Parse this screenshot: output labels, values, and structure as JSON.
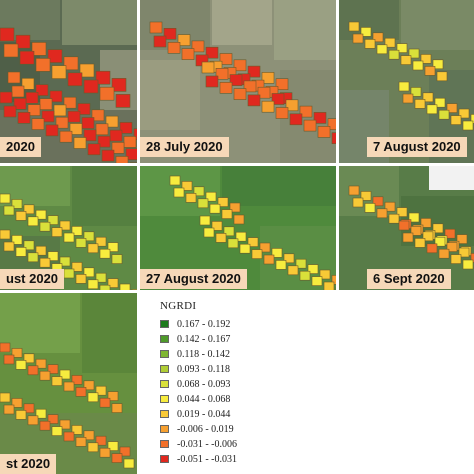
{
  "panels": [
    {
      "label": "2020"
    },
    {
      "label": "28 July 2020"
    },
    {
      "label": "7 August 2020"
    },
    {
      "label": "ust 2020"
    },
    {
      "label": "27 August 2020"
    },
    {
      "label": "6 Sept 2020"
    },
    {
      "label": "st 2020"
    }
  ],
  "legend": {
    "title": "NGRDI",
    "classes": [
      {
        "range": "0.167 - 0.192",
        "color": "#1e7b1e"
      },
      {
        "range": "0.142 - 0.167",
        "color": "#4f9a2a"
      },
      {
        "range": "0.118 - 0.142",
        "color": "#7fb632"
      },
      {
        "range": "0.093 - 0.118",
        "color": "#b0cd35"
      },
      {
        "range": "0.068 - 0.093",
        "color": "#d9e03a"
      },
      {
        "range": "0.044 - 0.068",
        "color": "#f7ec3e"
      },
      {
        "range": "0.019 - 0.044",
        "color": "#f8c936"
      },
      {
        "range": "-0.006 - 0.019",
        "color": "#f6a030"
      },
      {
        "range": "-0.031 - -0.006",
        "color": "#f2702a"
      },
      {
        "range": "-0.051 - -0.031",
        "color": "#e0281f"
      }
    ]
  }
}
